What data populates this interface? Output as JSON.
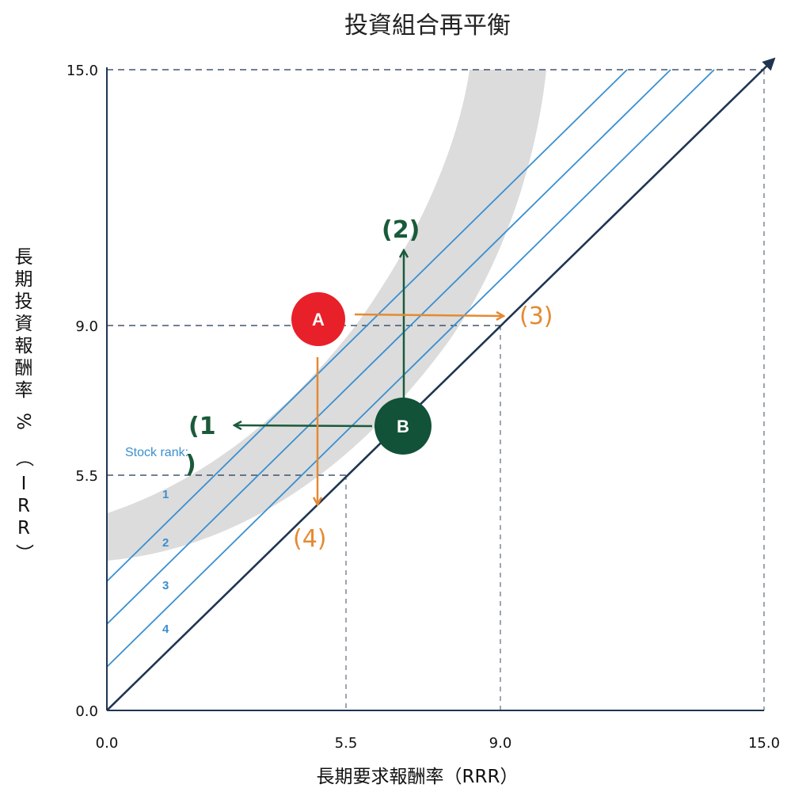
{
  "title": "投資組合再平衡",
  "axes": {
    "x_label": "長期要求報酬率（RRR）",
    "y_label_chars": [
      "長",
      "期",
      "投",
      "資",
      "報",
      "酬",
      "率",
      "%",
      "（",
      "I",
      "R",
      "R",
      "）"
    ],
    "x_ticks": [
      "0.0",
      "5.5",
      "9.0",
      "15.0"
    ],
    "y_ticks": [
      "0.0",
      "5.5",
      "9.0",
      "15.0"
    ]
  },
  "stock_rank": {
    "title": "Stock rank:",
    "ranks": [
      "1",
      "2",
      "3",
      "4"
    ]
  },
  "points": {
    "a": "A",
    "b": "B"
  },
  "moves": {
    "m1": "(1",
    "m1_close": ")",
    "m2": "(2)",
    "m3": "(3)",
    "m4": "(4)"
  },
  "colors": {
    "axis": "#1f3552",
    "rank_lines": "#3a8fd0",
    "band": "#dcdcdc",
    "point_a": "#e8202a",
    "point_b": "#115238",
    "orange_arrows": "#e48a33",
    "green_arrows": "#1a5a3a"
  }
}
